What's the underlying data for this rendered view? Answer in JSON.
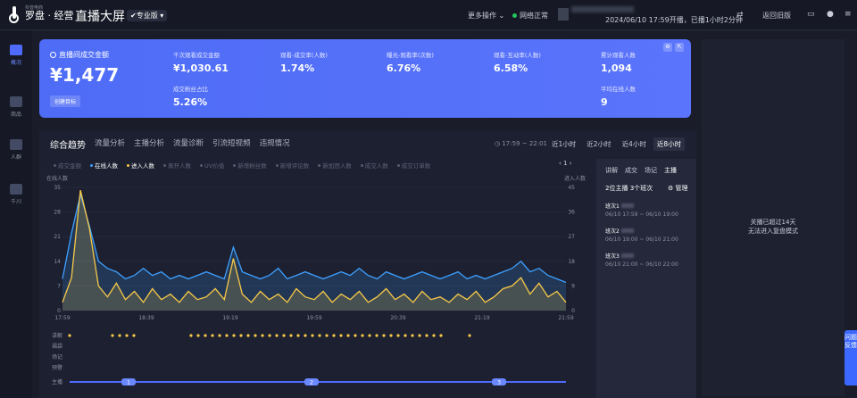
{
  "app": {
    "logo_small": "抖音电商",
    "logo_big": "罗盘 · 经营",
    "title": "直播大屏",
    "edition": "✔专业版 ▾"
  },
  "topbar": {
    "more_ops": "更多操作 ⌄",
    "network": "网络正常",
    "start_time": "2024/06/10 17:59开播，已播1小时2分钟",
    "swap": "⇄",
    "back_old": "返回旧版"
  },
  "sidenav": [
    {
      "label": "概况",
      "icon": "dashboard-icon",
      "active": true
    },
    {
      "label": "商品",
      "icon": "goods-icon",
      "active": false
    },
    {
      "label": "人群",
      "icon": "people-icon",
      "active": false
    },
    {
      "label": "千川",
      "icon": "ads-icon",
      "active": false
    }
  ],
  "kpi": {
    "main_label": "直播间成交金额",
    "main_value": "¥1,477",
    "button": "创建目标",
    "cells": [
      {
        "label": "千次观看成交金额",
        "value": "¥1,030.61"
      },
      {
        "label": "观看-成交率(人数)",
        "value": "1.74%"
      },
      {
        "label": "曝光-观看率(次数)",
        "value": "6.76%"
      },
      {
        "label": "观看-互动率(人数)",
        "value": "6.58%"
      },
      {
        "label": "累计观看人数",
        "value": "1,094"
      },
      {
        "label": "成交粉丝占比",
        "value": "5.26%"
      },
      {
        "label": "平均在线人数",
        "value": "9"
      }
    ]
  },
  "panel": {
    "tabs": [
      "综合趋势",
      "流量分析",
      "主播分析",
      "流量诊断",
      "引流短视频",
      "违规情况"
    ],
    "time_range": "◷ 17:59 ~ 22:01",
    "ranges": [
      "近1小时",
      "近2小时",
      "近4小时",
      "近8小时"
    ],
    "legend": [
      {
        "label": "成交金额",
        "on": false,
        "color": "#555a6e"
      },
      {
        "label": "在线人数",
        "on": true,
        "color": "#3ea0ff"
      },
      {
        "label": "进入人数",
        "on": true,
        "color": "#f7c948"
      },
      {
        "label": "离开人数",
        "on": false,
        "color": "#555a6e"
      },
      {
        "label": "UV价值",
        "on": false,
        "color": "#555a6e"
      },
      {
        "label": "新增粉丝数",
        "on": false,
        "color": "#555a6e"
      },
      {
        "label": "新增评论数",
        "on": false,
        "color": "#555a6e"
      },
      {
        "label": "新加团人数",
        "on": false,
        "color": "#555a6e"
      },
      {
        "label": "成交人数",
        "on": false,
        "color": "#555a6e"
      },
      {
        "label": "成交订单数",
        "on": false,
        "color": "#555a6e"
      }
    ],
    "pager": "‹ 1 ›"
  },
  "chart_data": {
    "type": "line",
    "ylabel_left": "在线人数",
    "ylabel_right": "进入人数",
    "yticks_left": [
      0,
      7,
      14,
      21,
      28,
      35
    ],
    "yticks_right": [
      0,
      9,
      18,
      27,
      36,
      45
    ],
    "ylim_left": [
      0,
      35
    ],
    "ylim_right": [
      0,
      45
    ],
    "xticks": [
      "17:59",
      "18:39",
      "19:19",
      "19:59",
      "20:39",
      "21:19",
      "21:59"
    ],
    "series": [
      {
        "name": "在线人数",
        "color": "#3ea0ff",
        "values": [
          9,
          22,
          33,
          24,
          14,
          12,
          11,
          9,
          10,
          12,
          10,
          11,
          9,
          10,
          9,
          10,
          11,
          10,
          9,
          18,
          11,
          10,
          9,
          10,
          12,
          9,
          10,
          11,
          10,
          9,
          10,
          11,
          10,
          12,
          10,
          9,
          11,
          10,
          9,
          10,
          11,
          10,
          9,
          10,
          11,
          9,
          10,
          9,
          10,
          11,
          12,
          14,
          11,
          12,
          10,
          9,
          8
        ]
      },
      {
        "name": "进入人数",
        "color": "#f7c948",
        "values": [
          3,
          12,
          44,
          30,
          9,
          5,
          10,
          4,
          7,
          3,
          8,
          4,
          6,
          3,
          7,
          4,
          5,
          8,
          4,
          19,
          6,
          3,
          7,
          4,
          6,
          3,
          8,
          5,
          4,
          7,
          3,
          6,
          4,
          7,
          3,
          5,
          8,
          4,
          6,
          3,
          7,
          4,
          5,
          3,
          6,
          4,
          7,
          3,
          5,
          8,
          9,
          12,
          6,
          10,
          5,
          7,
          3
        ]
      }
    ],
    "timeline_rows": [
      "讲解",
      "福袋",
      "场记",
      "预警",
      "主播"
    ],
    "timeline_tags": [
      "1",
      "2",
      "3"
    ]
  },
  "side_card": {
    "tabs": [
      "讲解",
      "成交",
      "场记",
      "主播"
    ],
    "summary_a": "2位主播",
    "summary_b": "3个班次",
    "manage": "⚙ 管理",
    "sessions": [
      {
        "name": "班次1",
        "time": "06/10 17:59 ~ 06/10 19:00"
      },
      {
        "name": "班次2",
        "time": "06/10 19:00 ~ 06/10 21:00"
      },
      {
        "name": "班次3",
        "time": "06/10 21:00 ~ 06/10 22:00"
      }
    ]
  },
  "right_panel": {
    "line1": "关播已超过14天",
    "line2": "无法进入复盘模式"
  },
  "feedback": "问题反馈"
}
